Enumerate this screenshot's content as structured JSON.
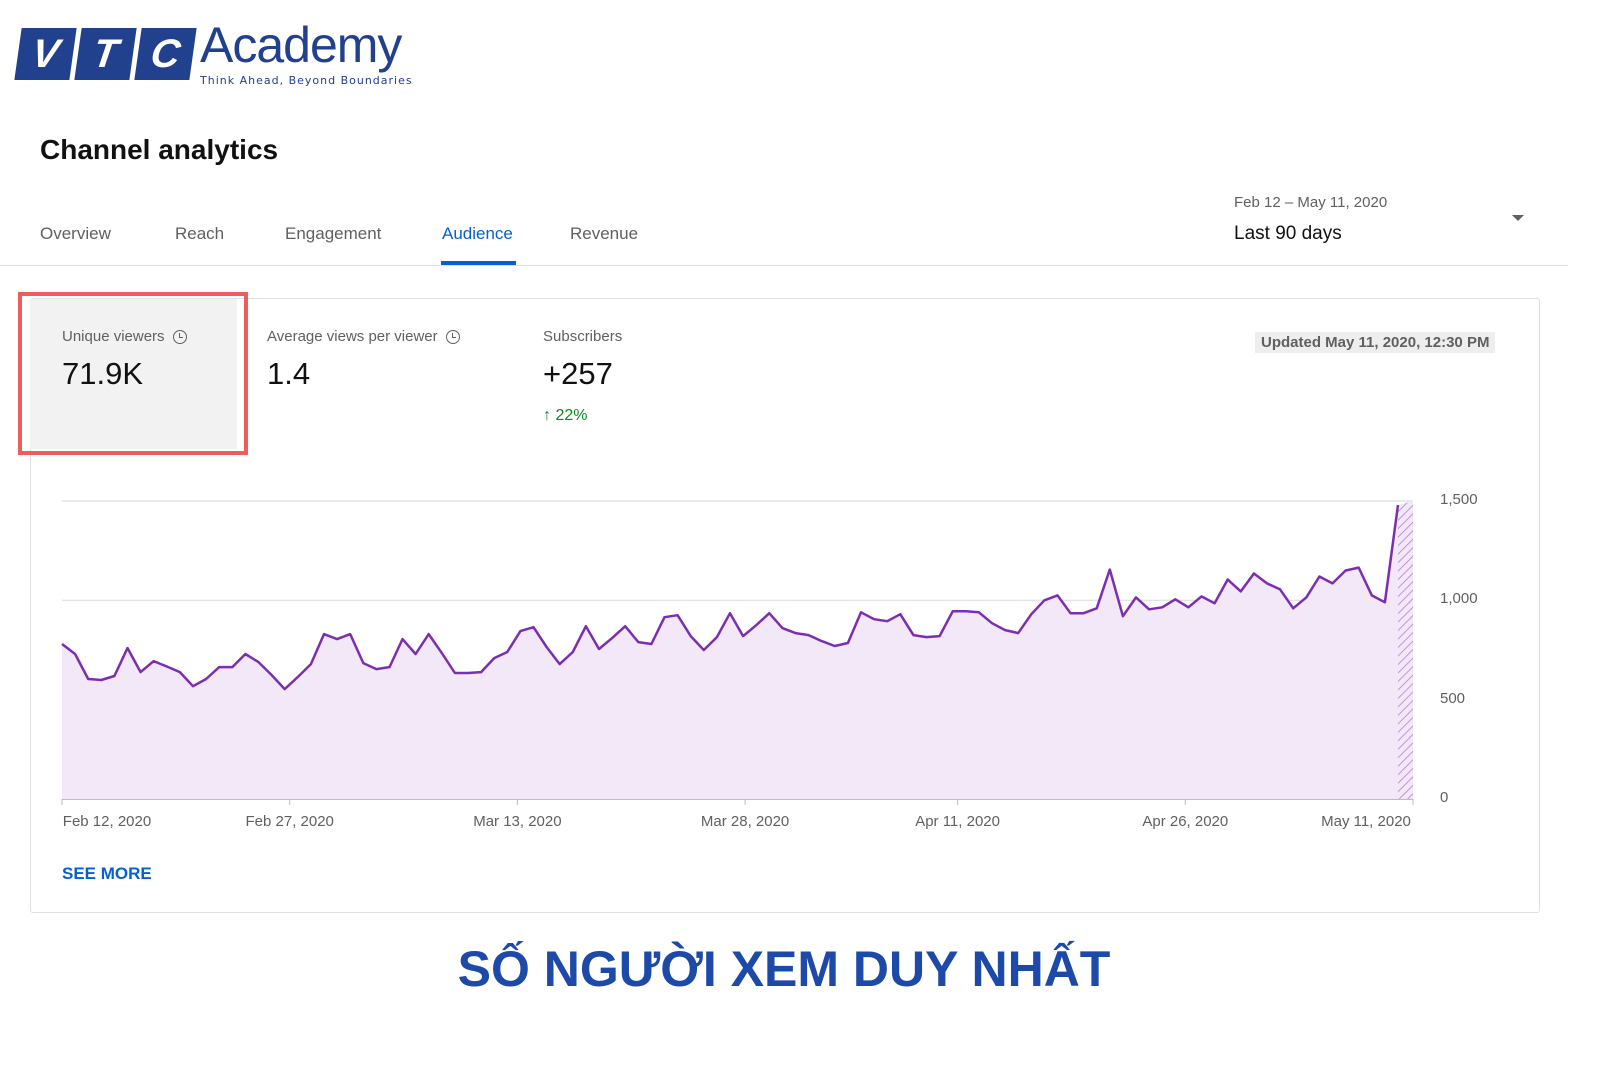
{
  "logo": {
    "boxes": [
      "V",
      "T",
      "C"
    ],
    "word": "Academy",
    "tagline": "Think Ahead, Beyond Boundaries",
    "color": "#21408e"
  },
  "page_title": "Channel analytics",
  "tabs": [
    {
      "label": "Overview",
      "active": false
    },
    {
      "label": "Reach",
      "active": false
    },
    {
      "label": "Engagement",
      "active": false
    },
    {
      "label": "Audience",
      "active": true
    },
    {
      "label": "Revenue",
      "active": false
    }
  ],
  "date_selector": {
    "range": "Feb 12 – May 11, 2020",
    "preset": "Last 90 days"
  },
  "metrics": [
    {
      "label": "Unique viewers",
      "value": "71.9K",
      "selected": true,
      "icon": "clock-icon"
    },
    {
      "label": "Average views per viewer",
      "value": "1.4",
      "icon": "clock-icon"
    },
    {
      "label": "Subscribers",
      "value": "+257",
      "delta": "22%",
      "delta_icon": "arrow-up-icon"
    }
  ],
  "updated": "Updated May 11, 2020, 12:30 PM",
  "see_more": "SEE MORE",
  "caption": "SỐ NGƯỜI XEM DUY NHẤT",
  "colors": {
    "accent": "#065fd4",
    "line": "#7b2fb0",
    "fill": "#f2e8f8",
    "highlight": "#ee5c5c",
    "positive": "#0a8a1c"
  },
  "chart_data": {
    "type": "area",
    "ylim": [
      0,
      1500
    ],
    "yticks": [
      "1,500",
      "1,000",
      "500",
      "0"
    ],
    "ytick_values": [
      1500,
      1000,
      500,
      0
    ],
    "xticks": [
      "Feb 12, 2020",
      "Feb 27, 2020",
      "Mar 13, 2020",
      "Mar 28, 2020",
      "Apr 11, 2020",
      "Apr 26, 2020",
      "May 11, 2020"
    ],
    "xtick_days": [
      0,
      15,
      30,
      45,
      59,
      74,
      89
    ],
    "grid": true,
    "partial_last_period": true,
    "values": [
      780,
      730,
      604,
      599,
      619,
      760,
      639,
      694,
      667,
      639,
      568,
      604,
      664,
      664,
      730,
      689,
      624,
      553,
      614,
      679,
      830,
      805,
      830,
      684,
      654,
      664,
      805,
      730,
      830,
      735,
      634,
      634,
      639,
      709,
      740,
      845,
      865,
      765,
      679,
      740,
      870,
      755,
      810,
      870,
      790,
      780,
      915,
      925,
      820,
      750,
      815,
      935,
      820,
      875,
      935,
      860,
      835,
      825,
      795,
      770,
      785,
      940,
      905,
      895,
      930,
      825,
      815,
      820,
      945,
      945,
      940,
      885,
      850,
      835,
      930,
      1000,
      1025,
      935,
      935,
      960,
      1155,
      920,
      1015,
      955,
      965,
      1005,
      965,
      1020,
      985,
      1105,
      1045,
      1135,
      1085,
      1055,
      960,
      1015,
      1120,
      1085,
      1150,
      1165,
      1025,
      990,
      1480
    ]
  }
}
